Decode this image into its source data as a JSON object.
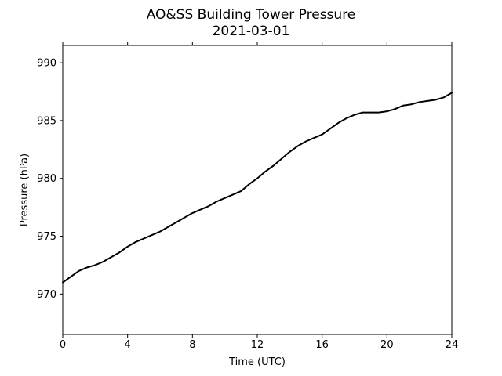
{
  "chart_data": {
    "type": "line",
    "title": "AO&SS Building Tower Pressure",
    "subtitle": "2021-03-01",
    "xlabel": "Time (UTC)",
    "ylabel": "Pressure (hPa)",
    "xlim": [
      0,
      24
    ],
    "ylim": [
      966.5,
      991.5
    ],
    "xticks": [
      0,
      4,
      8,
      12,
      16,
      20,
      24
    ],
    "yticks": [
      970,
      975,
      980,
      985,
      990
    ],
    "grid": false,
    "line_color": "#000000",
    "series": [
      {
        "x": [
          0,
          0.5,
          1,
          1.5,
          2,
          2.5,
          3,
          3.5,
          4,
          4.5,
          5,
          5.5,
          6,
          6.5,
          7,
          7.5,
          8,
          8.5,
          9,
          9.5,
          10,
          10.5,
          11,
          11.5,
          12,
          12.5,
          13,
          13.5,
          14,
          14.5,
          15,
          15.5,
          16,
          16.5,
          17,
          17.5,
          18,
          18.5,
          19,
          19.5,
          20,
          20.5,
          21,
          21.5,
          22,
          22.5,
          23,
          23.5,
          24
        ],
        "y": [
          971.0,
          971.5,
          972.0,
          972.3,
          972.5,
          972.8,
          973.2,
          973.6,
          974.1,
          974.5,
          974.8,
          975.1,
          975.4,
          975.8,
          976.2,
          976.6,
          977.0,
          977.3,
          977.6,
          978.0,
          978.3,
          978.6,
          978.9,
          979.5,
          980.0,
          980.6,
          981.1,
          981.7,
          982.3,
          982.8,
          983.2,
          983.5,
          983.8,
          984.3,
          984.8,
          985.2,
          985.5,
          985.7,
          985.7,
          985.7,
          985.8,
          986.0,
          986.3,
          986.4,
          986.6,
          986.7,
          986.8,
          987.0,
          987.4
        ]
      }
    ]
  }
}
